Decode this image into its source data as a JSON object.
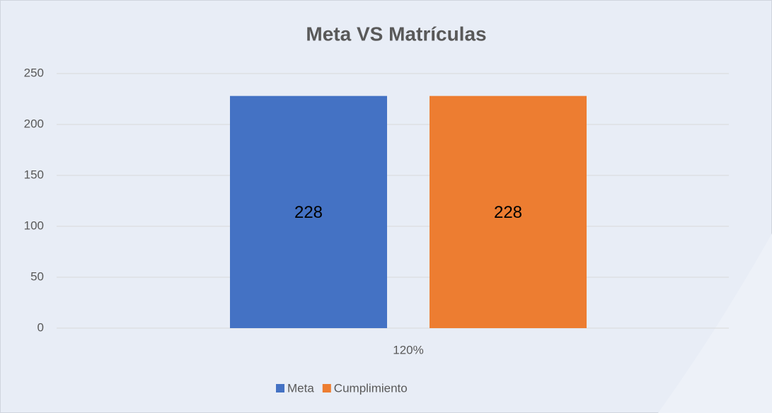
{
  "chart_data": {
    "type": "bar",
    "title": "Meta VS Matrículas",
    "categories": [
      "120%"
    ],
    "series": [
      {
        "name": "Meta",
        "color": "#4472c4",
        "values": [
          228
        ]
      },
      {
        "name": "Cumplimiento",
        "color": "#ed7d31",
        "values": [
          228
        ]
      }
    ],
    "ylim": [
      0,
      250
    ],
    "yticks": [
      0,
      50,
      100,
      150,
      200,
      250
    ],
    "grid": true,
    "legend": "bottom"
  }
}
